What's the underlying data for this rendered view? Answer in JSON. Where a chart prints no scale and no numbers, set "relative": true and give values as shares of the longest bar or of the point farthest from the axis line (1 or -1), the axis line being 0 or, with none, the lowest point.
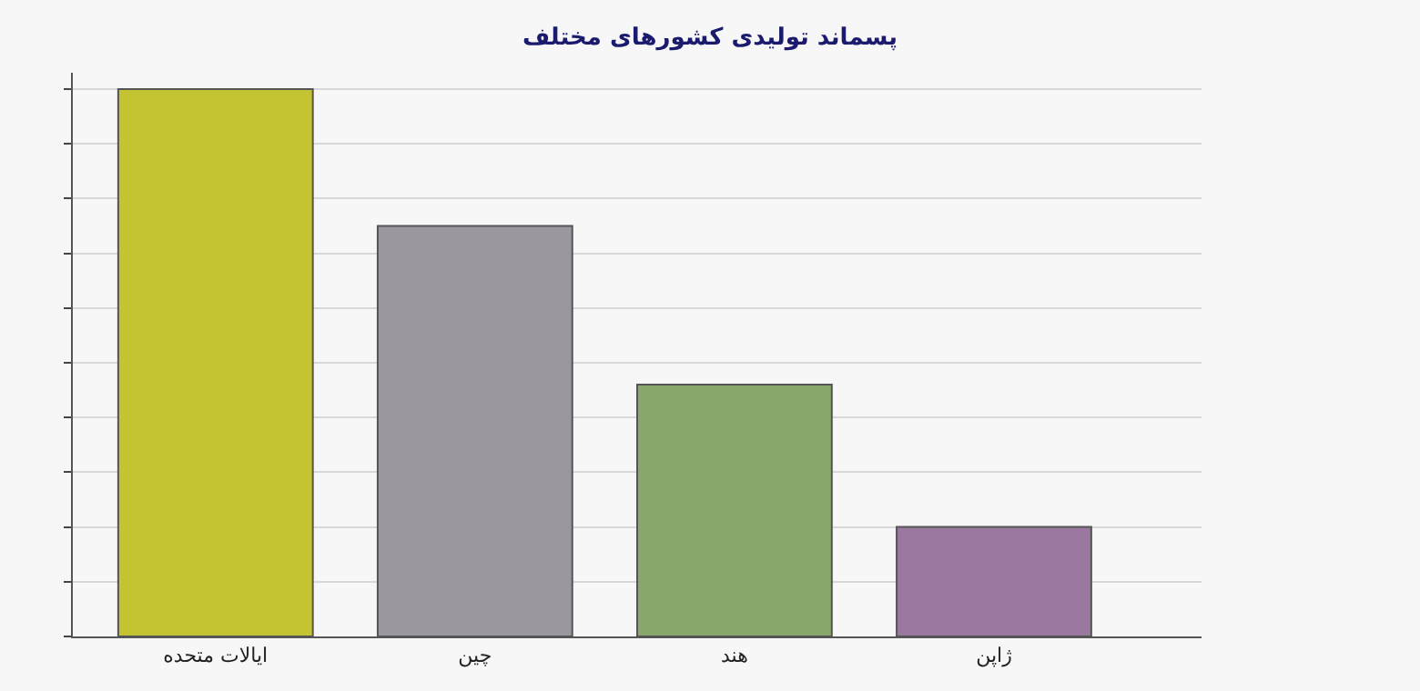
{
  "chart_data": {
    "type": "bar",
    "title": "پسماند تولیدی کشورهای مختلف",
    "categories": [
      "ایالات متحده",
      "چین",
      "هند",
      "ژاپن"
    ],
    "values": [
      1,
      0.75,
      0.46,
      0.2
    ],
    "colors": [
      "#c4c432",
      "#9a979e",
      "#88a86c",
      "#9a78a0"
    ],
    "relative": true,
    "grid": true
  }
}
